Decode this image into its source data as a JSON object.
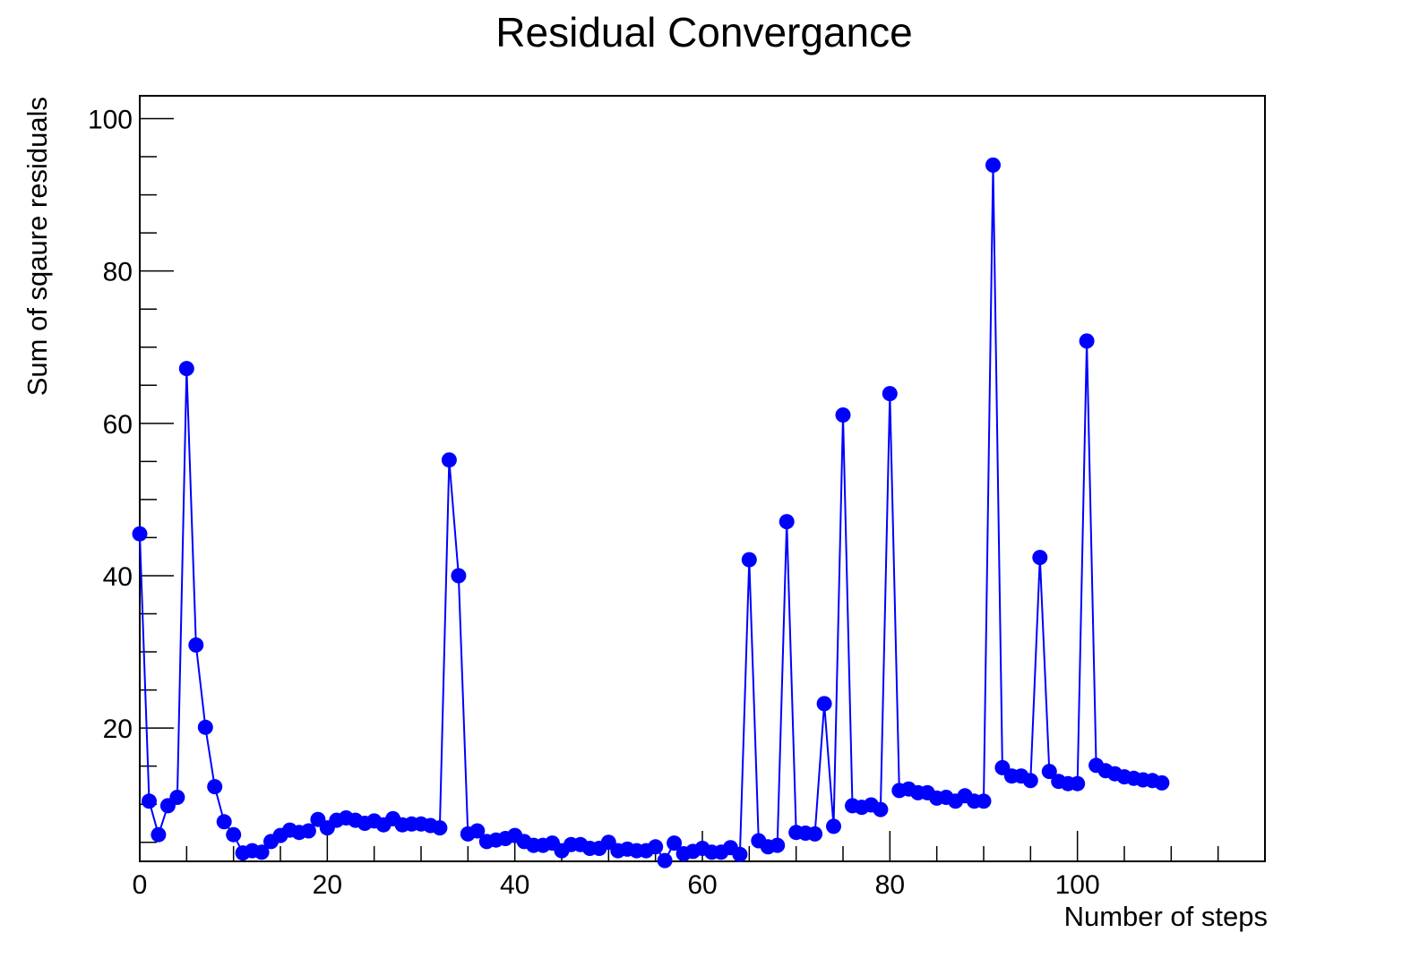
{
  "chart_data": {
    "type": "line",
    "title": "Residual Convergance",
    "xlabel": "Number of steps",
    "ylabel": "Sum of sqaure residuals",
    "xlim": [
      0,
      120
    ],
    "ylim": [
      2.5,
      103
    ],
    "x_ticks": [
      0,
      20,
      40,
      60,
      80,
      100
    ],
    "x_tick_labels": [
      "0",
      "20",
      "40",
      "60",
      "80",
      "100"
    ],
    "y_ticks": [
      20,
      40,
      60,
      80,
      100
    ],
    "y_tick_labels": [
      "20",
      "40",
      "60",
      "80",
      "100"
    ],
    "grid": false,
    "legend": "none",
    "series": [
      {
        "color": "#0000ff",
        "marker": "circle",
        "x": [
          0,
          1,
          2,
          3,
          4,
          5,
          6,
          7,
          8,
          9,
          10,
          11,
          12,
          13,
          14,
          15,
          16,
          17,
          18,
          19,
          20,
          21,
          22,
          23,
          24,
          25,
          26,
          27,
          28,
          29,
          30,
          31,
          32,
          33,
          34,
          35,
          36,
          37,
          38,
          39,
          40,
          41,
          42,
          43,
          44,
          45,
          46,
          47,
          48,
          49,
          50,
          51,
          52,
          53,
          54,
          55,
          56,
          57,
          58,
          59,
          60,
          61,
          62,
          63,
          64,
          65,
          66,
          67,
          68,
          69,
          70,
          71,
          72,
          73,
          74,
          75,
          76,
          77,
          78,
          79,
          80,
          81,
          82,
          83,
          84,
          85,
          86,
          87,
          88,
          89,
          90,
          91,
          92,
          93,
          94,
          95,
          96,
          97,
          98,
          99,
          100,
          101,
          102,
          103,
          104,
          105,
          106,
          107,
          108,
          109
        ],
        "y": [
          45.5,
          10.4,
          6.0,
          9.8,
          10.9,
          67.2,
          30.9,
          20.1,
          12.3,
          7.7,
          6.0,
          3.6,
          3.9,
          3.7,
          5.1,
          5.9,
          6.6,
          6.3,
          6.5,
          8.0,
          6.9,
          7.9,
          8.2,
          7.9,
          7.5,
          7.8,
          7.3,
          8.1,
          7.3,
          7.4,
          7.4,
          7.2,
          6.9,
          55.2,
          40.0,
          6.1,
          6.5,
          5.1,
          5.3,
          5.5,
          5.9,
          5.1,
          4.6,
          4.6,
          4.9,
          3.9,
          4.7,
          4.7,
          4.2,
          4.2,
          5.0,
          3.9,
          4.1,
          3.9,
          3.9,
          4.4,
          2.6,
          4.9,
          3.5,
          3.8,
          4.2,
          3.7,
          3.7,
          4.3,
          3.4,
          42.1,
          5.2,
          4.4,
          4.6,
          47.1,
          6.3,
          6.2,
          6.1,
          23.2,
          7.1,
          61.1,
          9.8,
          9.6,
          9.9,
          9.3,
          63.9,
          11.8,
          12.0,
          11.5,
          11.5,
          10.8,
          10.9,
          10.4,
          11.1,
          10.4,
          10.4,
          93.9,
          14.8,
          13.7,
          13.7,
          13.1,
          42.4,
          14.3,
          13.0,
          12.7,
          12.7,
          70.8,
          15.1,
          14.4,
          14.0,
          13.6,
          13.4,
          13.2,
          13.1,
          12.8
        ]
      }
    ]
  }
}
